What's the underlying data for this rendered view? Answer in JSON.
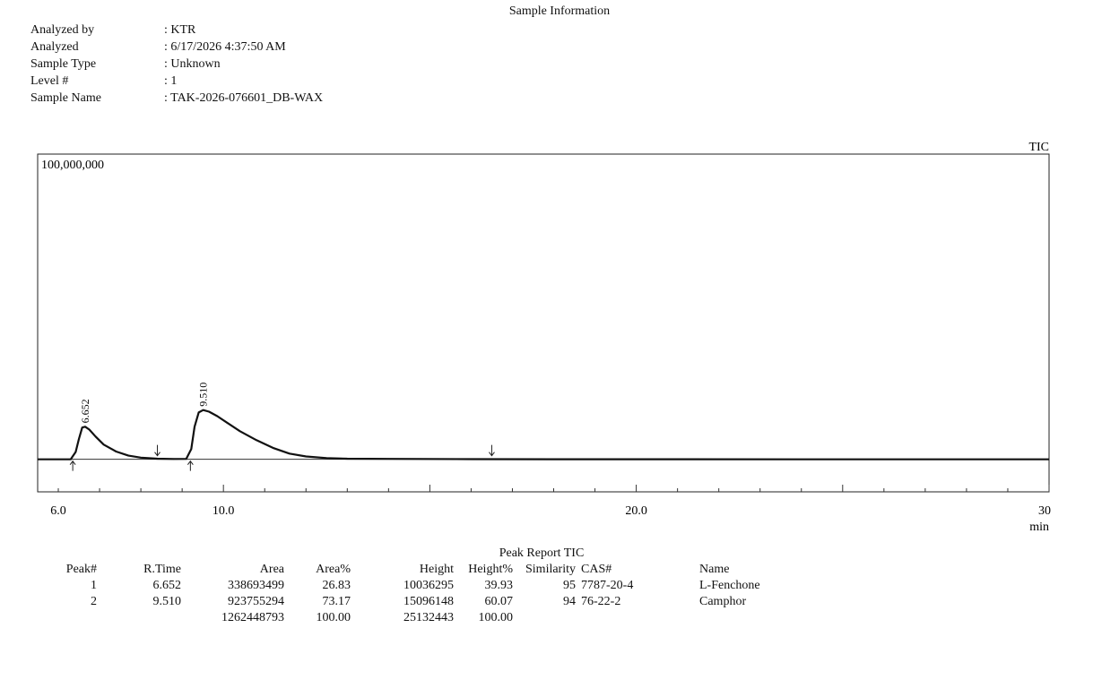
{
  "header": {
    "title": "Sample Information",
    "fields": [
      {
        "label": "Analyzed by",
        "value": ": KTR"
      },
      {
        "label": "Analyzed",
        "value": ": 6/17/2026 4:37:50 AM"
      },
      {
        "label": "Sample Type",
        "value": ": Unknown"
      },
      {
        "label": "Level #",
        "value": ": 1"
      },
      {
        "label": "Sample Name",
        "value": ": TAK-2026-076601_DB-WAX"
      }
    ]
  },
  "chart_data": {
    "type": "line",
    "title": "TIC",
    "xlabel": "min",
    "y_scale_label": "100,000,000",
    "xlim": [
      5.5,
      30
    ],
    "ylim": [
      -8000000,
      75000000
    ],
    "x_ticks": [
      6.0,
      10.0,
      20.0,
      30
    ],
    "x_tick_labels": [
      "6.0",
      "10.0",
      "20.0",
      "30"
    ],
    "grid": false,
    "series": [
      {
        "x": [
          5.5,
          6.3,
          6.42,
          6.5,
          6.58,
          6.652,
          6.75,
          6.9,
          7.1,
          7.4,
          7.7,
          8.0,
          8.4,
          8.8,
          9.1,
          9.22,
          9.3,
          9.4,
          9.51,
          9.65,
          9.85,
          10.1,
          10.4,
          10.8,
          11.2,
          11.6,
          12.0,
          12.5,
          13.0,
          14.0,
          16.0,
          18.0,
          20.0,
          24.0,
          28.0,
          30.0
        ],
        "y": [
          0,
          0,
          1800000,
          5000000,
          7800000,
          8000000,
          7300000,
          5600000,
          3600000,
          1900000,
          900000,
          400000,
          150000,
          80000,
          100000,
          2500000,
          8000000,
          11500000,
          12100000,
          11700000,
          10600000,
          8900000,
          6900000,
          4700000,
          2800000,
          1400000,
          700000,
          300000,
          150000,
          100000,
          30000,
          20000,
          20000,
          0,
          0,
          0
        ]
      }
    ],
    "peak_labels": [
      {
        "x": 6.652,
        "y": 8000000,
        "text": "6.652"
      },
      {
        "x": 9.51,
        "y": 12100000,
        "text": "9.510"
      }
    ],
    "integration_markers": [
      {
        "x": 6.35,
        "dir": "up"
      },
      {
        "x": 8.4,
        "dir": "down"
      },
      {
        "x": 9.2,
        "dir": "up"
      },
      {
        "x": 16.5,
        "dir": "down"
      }
    ]
  },
  "report": {
    "title": "Peak Report TIC",
    "columns": [
      "Peak#",
      "R.Time",
      "Area",
      "Area%",
      "Height",
      "Height%",
      "Similarity",
      "CAS#",
      "Name"
    ],
    "rows": [
      [
        "1",
        "6.652",
        "338693499",
        "26.83",
        "10036295",
        "39.93",
        "95",
        "7787-20-4",
        "L-Fenchone"
      ],
      [
        "2",
        "9.510",
        "923755294",
        "73.17",
        "15096148",
        "60.07",
        "94",
        "76-22-2",
        "Camphor"
      ]
    ],
    "totals": [
      "",
      "",
      "1262448793",
      "100.00",
      "25132443",
      "100.00",
      "",
      "",
      ""
    ]
  }
}
